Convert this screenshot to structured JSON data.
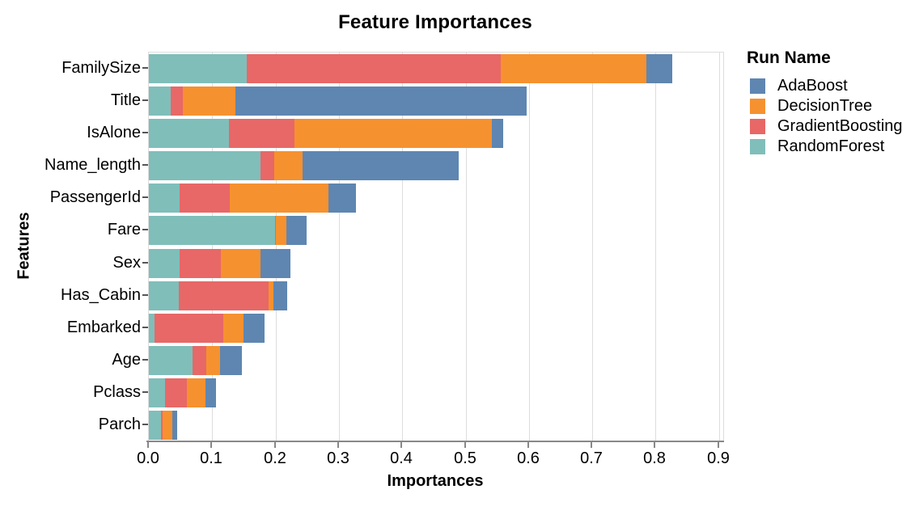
{
  "title": "Feature Importances",
  "axes": {
    "x": {
      "title": "Importances",
      "tick_labels": [
        "0.0",
        "0.1",
        "0.2",
        "0.3",
        "0.4",
        "0.5",
        "0.6",
        "0.7",
        "0.8",
        "0.9"
      ],
      "grid": true
    },
    "y": {
      "title": "Features"
    }
  },
  "legend": {
    "title": "Run Name",
    "position": "right",
    "entries": [
      {
        "label": "AdaBoost",
        "color": "#5e86b1"
      },
      {
        "label": "DecisionTree",
        "color": "#f6912f"
      },
      {
        "label": "GradientBoosting",
        "color": "#e76867"
      },
      {
        "label": "RandomForest",
        "color": "#80beba"
      }
    ]
  },
  "colors": {
    "grid": "#dddddd",
    "frame": "#dddddd",
    "axis_domain": "#888888",
    "text": "#000000"
  },
  "chart_data": {
    "type": "bar",
    "orientation": "horizontal",
    "stacked": true,
    "title": "Feature Importances",
    "xlabel": "Importances",
    "ylabel": "Features",
    "xlim": [
      0,
      0.9
    ],
    "grid": true,
    "legend_position": "right",
    "categories": [
      "FamilySize",
      "Title",
      "IsAlone",
      "Name_length",
      "PassengerId",
      "Fare",
      "Sex",
      "Has_Cabin",
      "Embarked",
      "Age",
      "Pclass",
      "Parch"
    ],
    "stack_order_left_to_right": [
      "RandomForest",
      "GradientBoosting",
      "DecisionTree",
      "AdaBoost"
    ],
    "series": [
      {
        "name": "RandomForest",
        "color": "#80beba",
        "values": [
          0.155,
          0.034,
          0.127,
          0.176,
          0.048,
          0.199,
          0.049,
          0.047,
          0.009,
          0.069,
          0.025,
          0.019
        ]
      },
      {
        "name": "GradientBoosting",
        "color": "#e76867",
        "values": [
          0.4,
          0.02,
          0.103,
          0.022,
          0.08,
          0.002,
          0.065,
          0.142,
          0.109,
          0.022,
          0.035,
          0.003
        ]
      },
      {
        "name": "DecisionTree",
        "color": "#f6912f",
        "values": [
          0.23,
          0.083,
          0.311,
          0.045,
          0.155,
          0.016,
          0.062,
          0.008,
          0.032,
          0.021,
          0.029,
          0.015
        ]
      },
      {
        "name": "AdaBoost",
        "color": "#5e86b1",
        "values": [
          0.041,
          0.459,
          0.018,
          0.246,
          0.044,
          0.032,
          0.047,
          0.021,
          0.033,
          0.035,
          0.017,
          0.008
        ]
      }
    ],
    "totals": [
      0.826,
      0.596,
      0.559,
      0.489,
      0.327,
      0.249,
      0.223,
      0.218,
      0.183,
      0.147,
      0.106,
      0.045
    ]
  }
}
